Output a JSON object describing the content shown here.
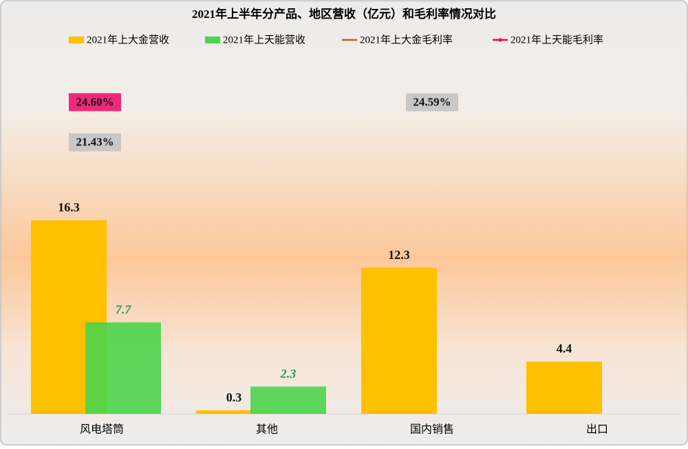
{
  "chart_data": {
    "type": "bar-line",
    "title": "2021年上半年分产品、地区营收（亿元）和毛利率情况对比",
    "categories": [
      "风电塔筒",
      "其他",
      "国内销售",
      "出口"
    ],
    "series": [
      {
        "name": "2021年上大金营收",
        "type": "bar",
        "color": "#FFC000",
        "values": [
          16.3,
          0.3,
          12.3,
          4.4
        ]
      },
      {
        "name": "2021年上天能营收",
        "type": "bar",
        "color": "#4CD44C",
        "values": [
          7.7,
          2.3,
          null,
          null
        ]
      },
      {
        "name": "2021年上大金毛利率",
        "type": "line",
        "axis": "y2",
        "color": "#A07000",
        "label_bg": "#C8C8C8",
        "values": [
          21.43,
          null,
          24.59,
          null
        ],
        "value_labels": [
          "21.43%",
          null,
          "24.59%",
          null
        ]
      },
      {
        "name": "2021年上天能毛利率",
        "type": "line",
        "axis": "y2",
        "color": "#FF0033",
        "label_bg": "#F0287A",
        "values": [
          24.6,
          null,
          null,
          null
        ],
        "value_labels": [
          "24.60%",
          null,
          null,
          null
        ]
      }
    ],
    "ylim": [
      0,
      32
    ],
    "y2lim": [
      0,
      30
    ]
  }
}
